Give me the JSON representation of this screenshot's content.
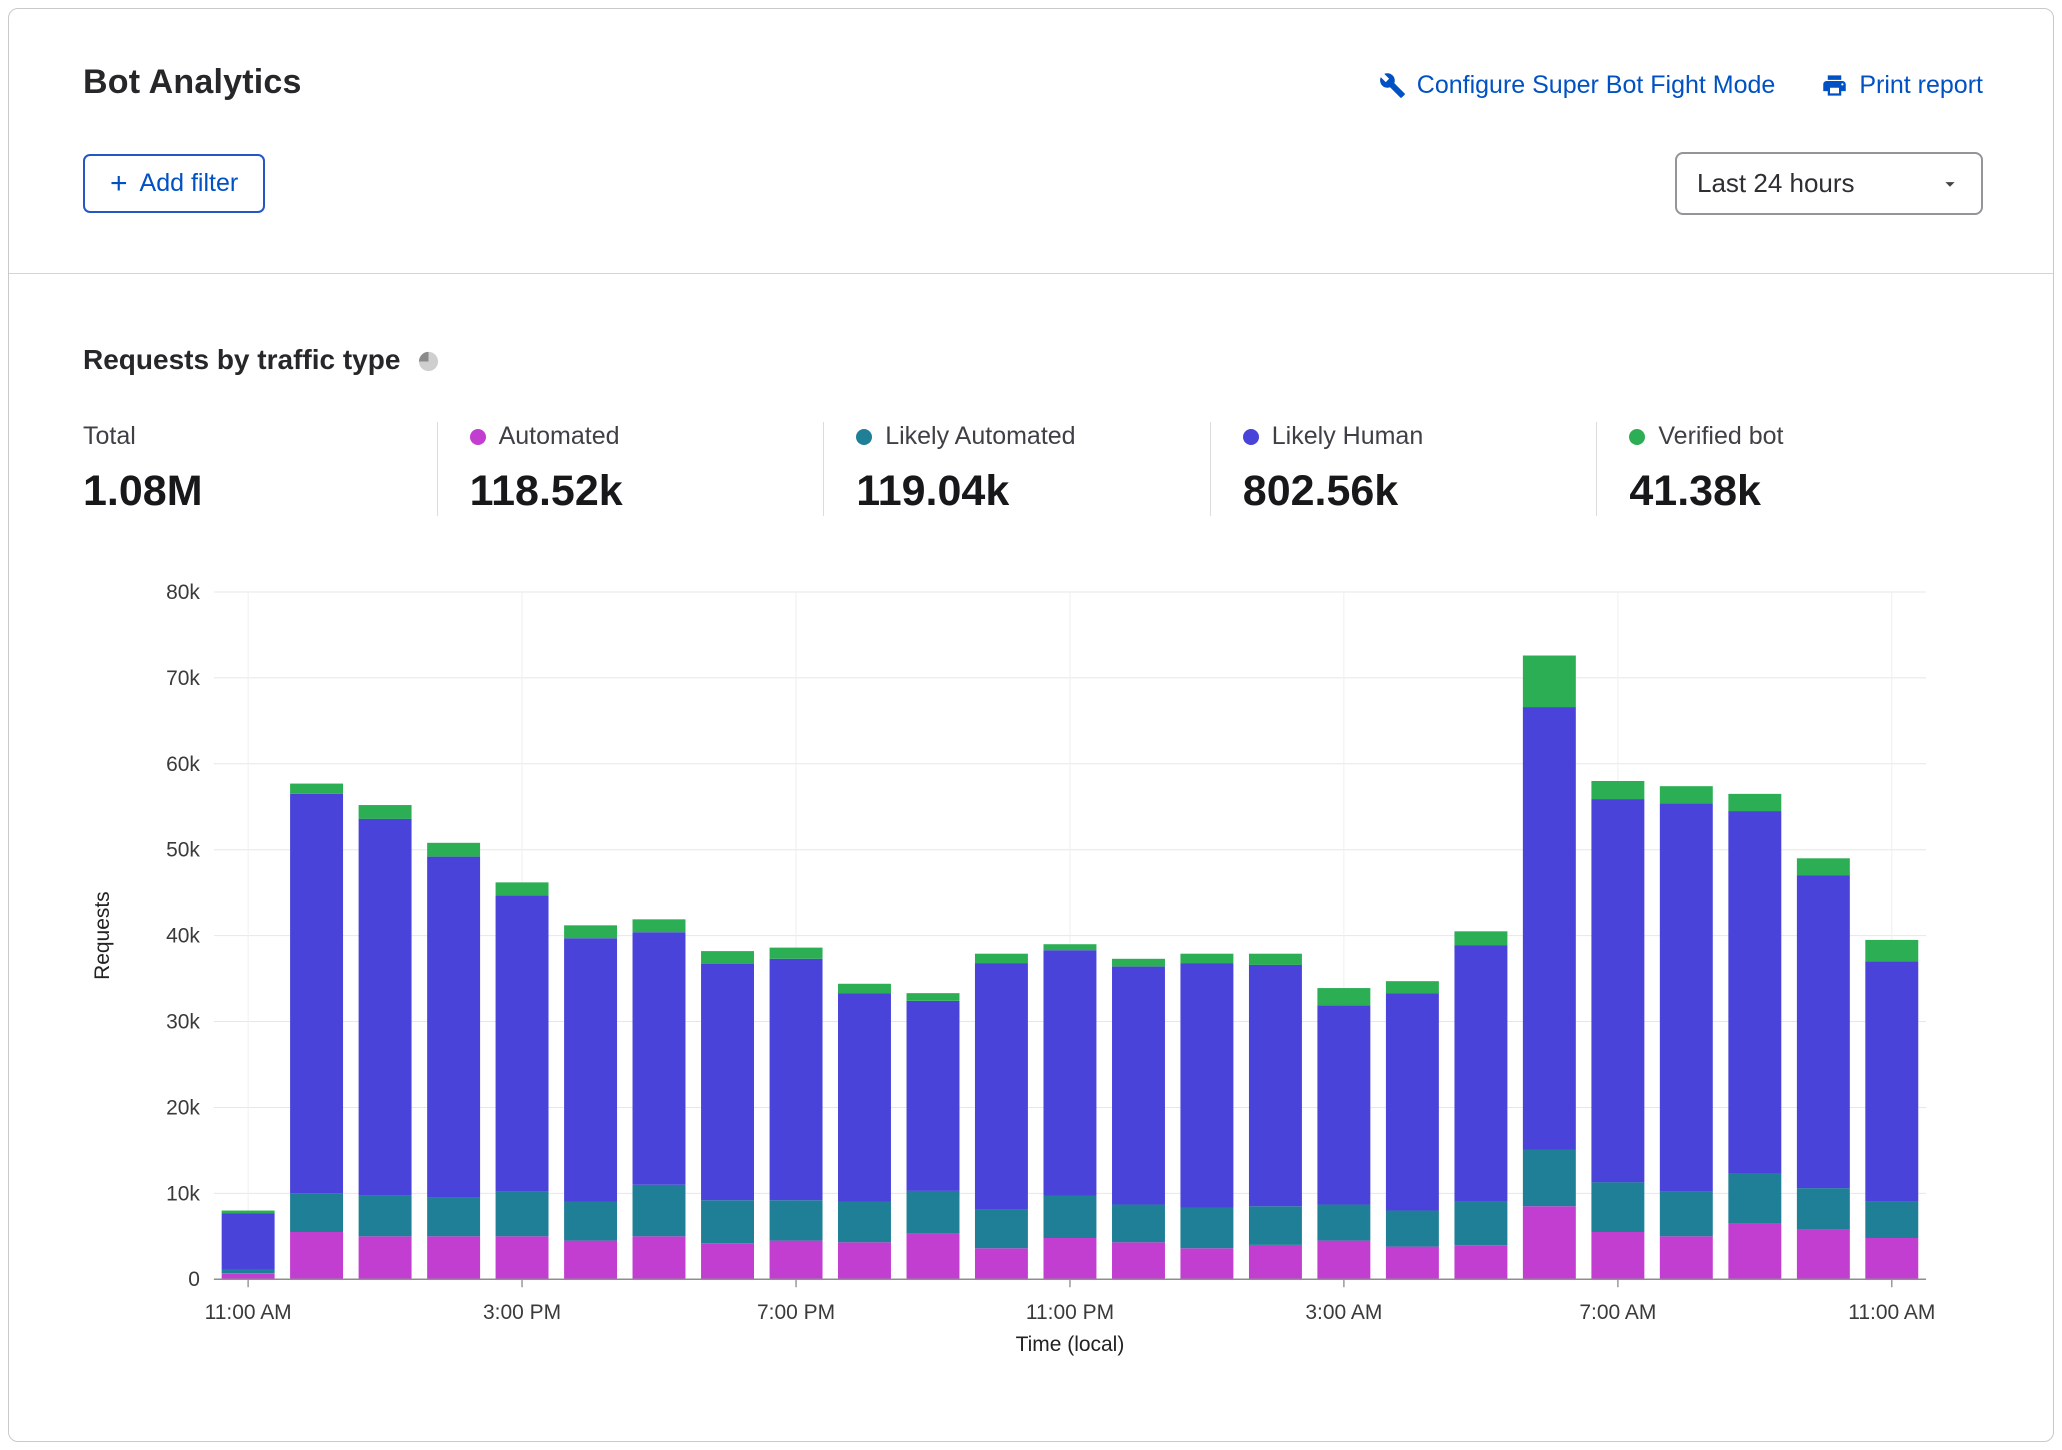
{
  "header": {
    "title": "Bot Analytics",
    "configure_link": "Configure Super Bot Fight Mode",
    "print_link": "Print report"
  },
  "controls": {
    "add_filter": "Add filter",
    "time_range": "Last 24 hours"
  },
  "section": {
    "heading": "Requests by traffic type"
  },
  "stats": {
    "items": [
      {
        "label": "Total",
        "value": "1.08M",
        "color": ""
      },
      {
        "label": "Automated",
        "value": "118.52k",
        "color": "#c13ed1"
      },
      {
        "label": "Likely Automated",
        "value": "119.04k",
        "color": "#1f7f96"
      },
      {
        "label": "Likely Human",
        "value": "802.56k",
        "color": "#4a43d9"
      },
      {
        "label": "Verified bot",
        "value": "41.38k",
        "color": "#2bae54"
      }
    ]
  },
  "colors": {
    "link_blue": "#0051c3",
    "automated": "#c13ed1",
    "likely_automated": "#1f7f96",
    "likely_human": "#4a43d9",
    "verified_bot": "#2bae54"
  },
  "chart_data": {
    "type": "bar",
    "stacked": true,
    "title": "Requests by traffic type",
    "xlabel": "Time (local)",
    "ylabel": "Requests",
    "ylim": [
      0,
      80000
    ],
    "y_tick_step": 10000,
    "y_tick_labels": [
      "0",
      "10k",
      "20k",
      "30k",
      "40k",
      "50k",
      "60k",
      "70k",
      "80k"
    ],
    "x_tick_labels": [
      "11:00 AM",
      "3:00 PM",
      "7:00 PM",
      "11:00 PM",
      "3:00 AM",
      "7:00 AM",
      "11:00 AM"
    ],
    "x_tick_indices": [
      0,
      4,
      8,
      12,
      16,
      20,
      24
    ],
    "grid": true,
    "legend_position": "top-stats",
    "series": [
      {
        "name": "Automated",
        "color": "#c13ed1",
        "values": [
          700,
          5500,
          5000,
          5000,
          5000,
          4500,
          5000,
          4200,
          4500,
          4300,
          5300,
          3600,
          4800,
          4300,
          3600,
          4000,
          4500,
          3800,
          3900,
          8500,
          5500,
          5000,
          6500,
          5800,
          4800
        ]
      },
      {
        "name": "Likely Automated",
        "color": "#1f7f96",
        "values": [
          400,
          4500,
          4800,
          4500,
          5200,
          4500,
          6000,
          5000,
          4700,
          4700,
          5000,
          4500,
          4900,
          4400,
          4700,
          4500,
          4200,
          4200,
          5200,
          6600,
          5800,
          5200,
          5800,
          4800,
          4300
        ]
      },
      {
        "name": "Likely Human",
        "color": "#4a43d9",
        "values": [
          6600,
          46500,
          43800,
          39700,
          34500,
          30700,
          29400,
          27500,
          28100,
          24300,
          22100,
          28700,
          28600,
          27700,
          28500,
          28100,
          23200,
          25300,
          29800,
          51500,
          44600,
          45200,
          42200,
          36400,
          27900
        ]
      },
      {
        "name": "Verified bot",
        "color": "#2bae54",
        "values": [
          300,
          1200,
          1600,
          1600,
          1500,
          1500,
          1500,
          1500,
          1300,
          1100,
          900,
          1100,
          700,
          900,
          1100,
          1300,
          2000,
          1400,
          1600,
          6000,
          2100,
          2000,
          2000,
          2000,
          2500
        ]
      }
    ]
  }
}
